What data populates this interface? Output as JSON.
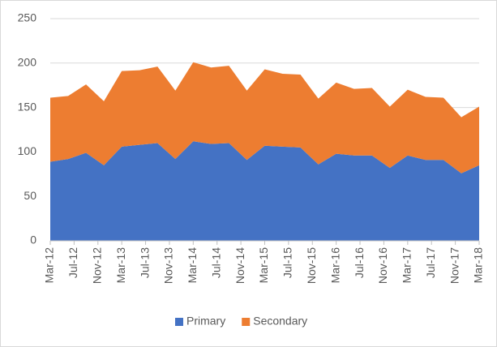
{
  "chart_data": {
    "type": "stacked-area",
    "x": [
      "2012-03",
      "2012-06",
      "2012-09",
      "2012-12",
      "2013-03",
      "2013-06",
      "2013-09",
      "2013-12",
      "2014-03",
      "2014-06",
      "2014-09",
      "2014-12",
      "2015-03",
      "2015-06",
      "2015-09",
      "2015-12",
      "2016-03",
      "2016-06",
      "2016-09",
      "2016-12",
      "2017-03",
      "2017-06",
      "2017-09",
      "2017-12",
      "2018-03"
    ],
    "xticks": [
      {
        "value": "2012-03",
        "label": "Mar-12"
      },
      {
        "value": "2012-07",
        "label": "Jul-12"
      },
      {
        "value": "2012-11",
        "label": "Nov-12"
      },
      {
        "value": "2013-03",
        "label": "Mar-13"
      },
      {
        "value": "2013-07",
        "label": "Jul-13"
      },
      {
        "value": "2013-11",
        "label": "Nov-13"
      },
      {
        "value": "2014-03",
        "label": "Mar-14"
      },
      {
        "value": "2014-07",
        "label": "Jul-14"
      },
      {
        "value": "2014-11",
        "label": "Nov-14"
      },
      {
        "value": "2015-03",
        "label": "Mar-15"
      },
      {
        "value": "2015-07",
        "label": "Jul-15"
      },
      {
        "value": "2015-11",
        "label": "Nov-15"
      },
      {
        "value": "2016-03",
        "label": "Mar-16"
      },
      {
        "value": "2016-07",
        "label": "Jul-16"
      },
      {
        "value": "2016-11",
        "label": "Nov-16"
      },
      {
        "value": "2017-03",
        "label": "Mar-17"
      },
      {
        "value": "2017-07",
        "label": "Jul-17"
      },
      {
        "value": "2017-11",
        "label": "Nov-17"
      },
      {
        "value": "2018-03",
        "label": "Mar-18"
      }
    ],
    "series": [
      {
        "name": "Primary",
        "color": "#4472c4",
        "values": [
          89,
          92,
          99,
          85,
          106,
          108,
          110,
          92,
          112,
          109,
          110,
          91,
          107,
          106,
          105,
          86,
          98,
          96,
          96,
          82,
          96,
          91,
          91,
          76,
          85
        ]
      },
      {
        "name": "Secondary",
        "color": "#ed7d31",
        "values": [
          72,
          71,
          77,
          72,
          85,
          84,
          86,
          77,
          89,
          86,
          87,
          78,
          86,
          82,
          82,
          74,
          80,
          75,
          76,
          69,
          74,
          71,
          70,
          63,
          66
        ]
      }
    ],
    "ylim": [
      0,
      250
    ],
    "yticks": [
      0,
      50,
      100,
      150,
      200,
      250
    ],
    "grid": true,
    "legend": "bottom"
  }
}
